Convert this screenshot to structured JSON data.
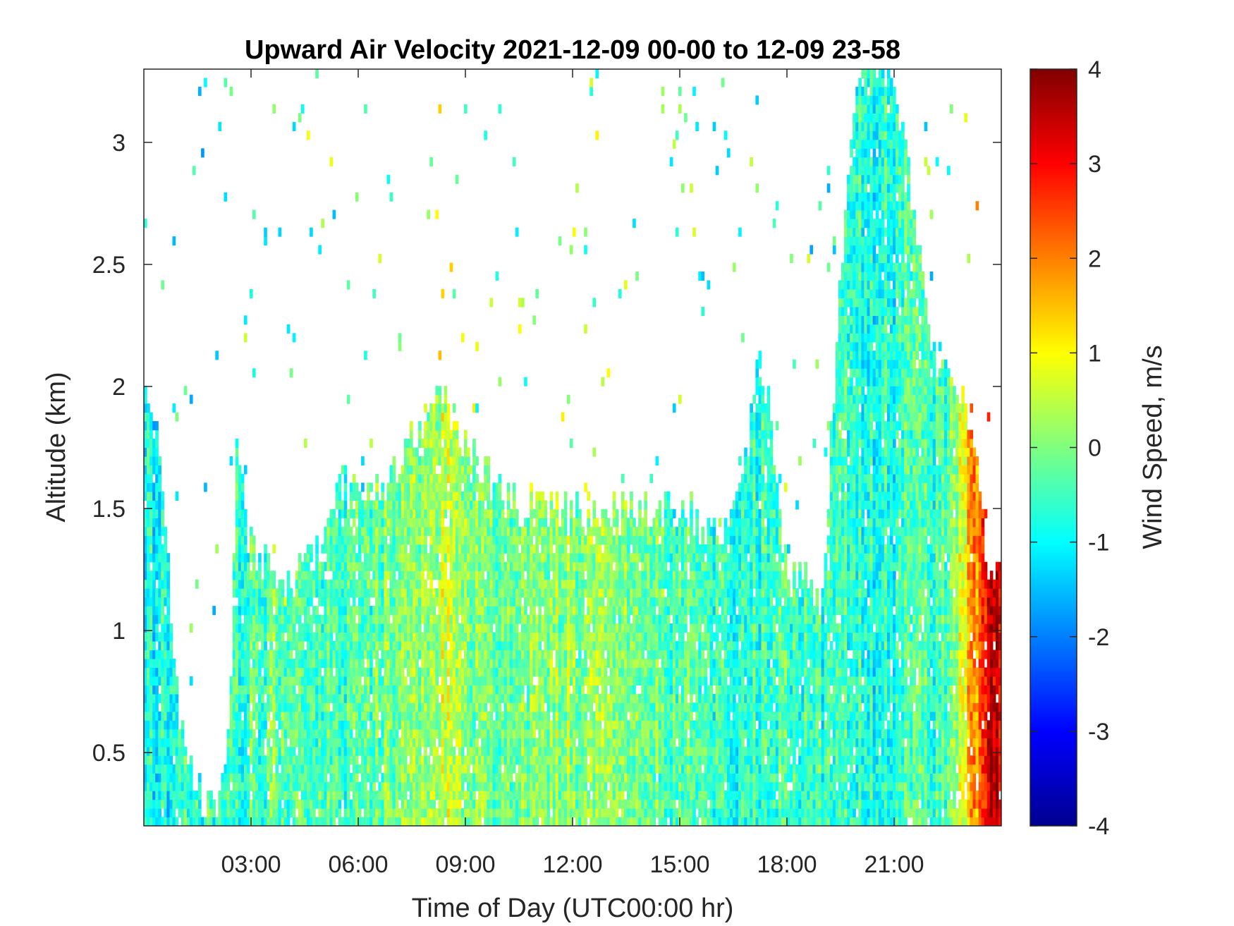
{
  "chart_data": {
    "type": "heatmap",
    "title": "Upward Air Velocity 2021-12-09 00-00 to 12-09 23-58",
    "xlabel": "Time of Day (UTC00:00 hr)",
    "ylabel": "Altitude (km)",
    "colorbar_label": "Wind Speed, m/s",
    "colormap": "jet",
    "x_unit": "hour",
    "xlim": [
      0,
      24
    ],
    "ylim": [
      0.2,
      3.3
    ],
    "clim": [
      -4,
      4
    ],
    "x_ticks": [
      {
        "value": 3,
        "label": "03:00"
      },
      {
        "value": 6,
        "label": "06:00"
      },
      {
        "value": 9,
        "label": "09:00"
      },
      {
        "value": 12,
        "label": "12:00"
      },
      {
        "value": 15,
        "label": "15:00"
      },
      {
        "value": 18,
        "label": "18:00"
      },
      {
        "value": 21,
        "label": "21:00"
      }
    ],
    "y_ticks": [
      {
        "value": 0.5,
        "label": "0.5"
      },
      {
        "value": 1,
        "label": "1"
      },
      {
        "value": 1.5,
        "label": "1.5"
      },
      {
        "value": 2,
        "label": "2"
      },
      {
        "value": 2.5,
        "label": "2.5"
      },
      {
        "value": 3,
        "label": "3"
      }
    ],
    "colorbar_ticks": [
      {
        "value": 4,
        "label": "4"
      },
      {
        "value": 3,
        "label": "3"
      },
      {
        "value": 2,
        "label": "2"
      },
      {
        "value": 1,
        "label": "1"
      },
      {
        "value": 0,
        "label": "0"
      },
      {
        "value": -1,
        "label": "-1"
      },
      {
        "value": -2,
        "label": "-2"
      },
      {
        "value": -3,
        "label": "-3"
      },
      {
        "value": -4,
        "label": "-4"
      }
    ],
    "coverage_top_km": [
      {
        "hour": 0.0,
        "top": 2.0
      },
      {
        "hour": 0.3,
        "top": 1.9
      },
      {
        "hour": 0.6,
        "top": 1.4
      },
      {
        "hour": 1.0,
        "top": 0.6
      },
      {
        "hour": 1.5,
        "top": 0.35
      },
      {
        "hour": 2.0,
        "top": 0.25
      },
      {
        "hour": 2.4,
        "top": 0.6
      },
      {
        "hour": 2.6,
        "top": 1.7
      },
      {
        "hour": 3.0,
        "top": 1.35
      },
      {
        "hour": 4.0,
        "top": 1.2
      },
      {
        "hour": 5.0,
        "top": 1.35
      },
      {
        "hour": 5.5,
        "top": 1.6
      },
      {
        "hour": 6.0,
        "top": 1.55
      },
      {
        "hour": 7.0,
        "top": 1.65
      },
      {
        "hour": 8.0,
        "top": 1.9
      },
      {
        "hour": 8.5,
        "top": 1.95
      },
      {
        "hour": 9.0,
        "top": 1.75
      },
      {
        "hour": 10.0,
        "top": 1.55
      },
      {
        "hour": 10.5,
        "top": 1.5
      },
      {
        "hour": 11.0,
        "top": 1.55
      },
      {
        "hour": 12.0,
        "top": 1.48
      },
      {
        "hour": 14.0,
        "top": 1.5
      },
      {
        "hour": 15.0,
        "top": 1.5
      },
      {
        "hour": 16.0,
        "top": 1.4
      },
      {
        "hour": 16.8,
        "top": 1.6
      },
      {
        "hour": 17.2,
        "top": 2.2
      },
      {
        "hour": 17.6,
        "top": 1.8
      },
      {
        "hour": 18.0,
        "top": 1.25
      },
      {
        "hour": 19.0,
        "top": 1.15
      },
      {
        "hour": 19.5,
        "top": 2.5
      },
      {
        "hour": 20.0,
        "top": 3.3
      },
      {
        "hour": 21.0,
        "top": 3.3
      },
      {
        "hour": 22.0,
        "top": 2.2
      },
      {
        "hour": 23.0,
        "top": 2.0
      },
      {
        "hour": 23.6,
        "top": 1.3
      },
      {
        "hour": 24.0,
        "top": 1.25
      }
    ],
    "mean_velocity_m_s": [
      {
        "hour": 0.0,
        "w": -0.9
      },
      {
        "hour": 2.5,
        "w": -0.5
      },
      {
        "hour": 4.0,
        "w": -0.2
      },
      {
        "hour": 6.0,
        "w": -0.4
      },
      {
        "hour": 8.5,
        "w": 0.5
      },
      {
        "hour": 10.0,
        "w": -0.3
      },
      {
        "hour": 11.5,
        "w": 0.2
      },
      {
        "hour": 13.0,
        "w": 0.1
      },
      {
        "hour": 15.0,
        "w": -0.3
      },
      {
        "hour": 17.0,
        "w": -0.6
      },
      {
        "hour": 18.0,
        "w": -0.4
      },
      {
        "hour": 20.5,
        "w": -0.8
      },
      {
        "hour": 22.5,
        "w": -0.4
      },
      {
        "hour": 23.8,
        "w": 3.5
      }
    ]
  }
}
